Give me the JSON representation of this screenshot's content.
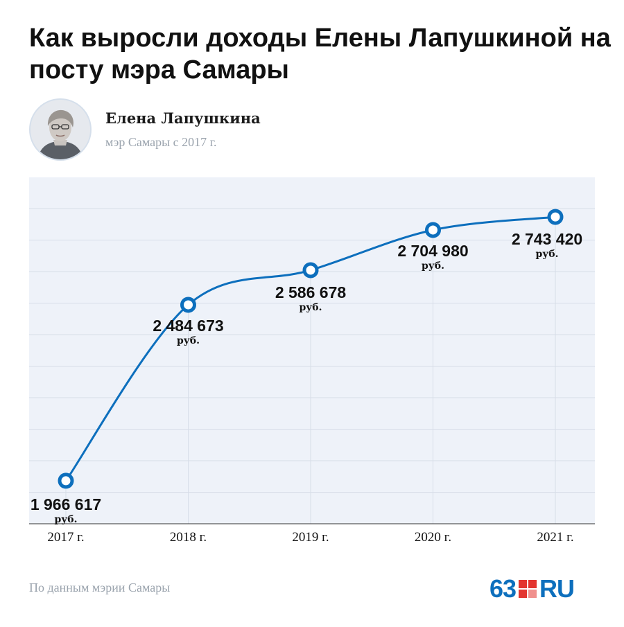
{
  "title": "Как выросли доходы Елены Лапушкиной на посту мэра Самары",
  "person": {
    "name": "Елена Лапушкина",
    "role": "мэр Самары с 2017 г."
  },
  "source": "По данным мэрии Самары",
  "logo": {
    "number": "63",
    "suffix": "RU"
  },
  "colors": {
    "line": "#0d6fbd",
    "plot_bg": "#eef2f9",
    "grid": "#d7dde8",
    "logo_blue": "#0d6fbd",
    "logo_red": "#e3342f"
  },
  "chart_data": {
    "type": "line",
    "categories": [
      "2017 г.",
      "2018 г.",
      "2019 г.",
      "2020 г.",
      "2021 г."
    ],
    "series": [
      {
        "values": [
          1966617,
          2484673,
          2586678,
          2704980,
          2743420
        ],
        "value_labels": [
          "1 966 617",
          "2 484 673",
          "2 586 678",
          "2 704 980",
          "2 743 420"
        ],
        "unit_label": "руб."
      }
    ],
    "ylim": [
      1840000,
      2860000
    ],
    "grid": true,
    "legend": "none"
  }
}
